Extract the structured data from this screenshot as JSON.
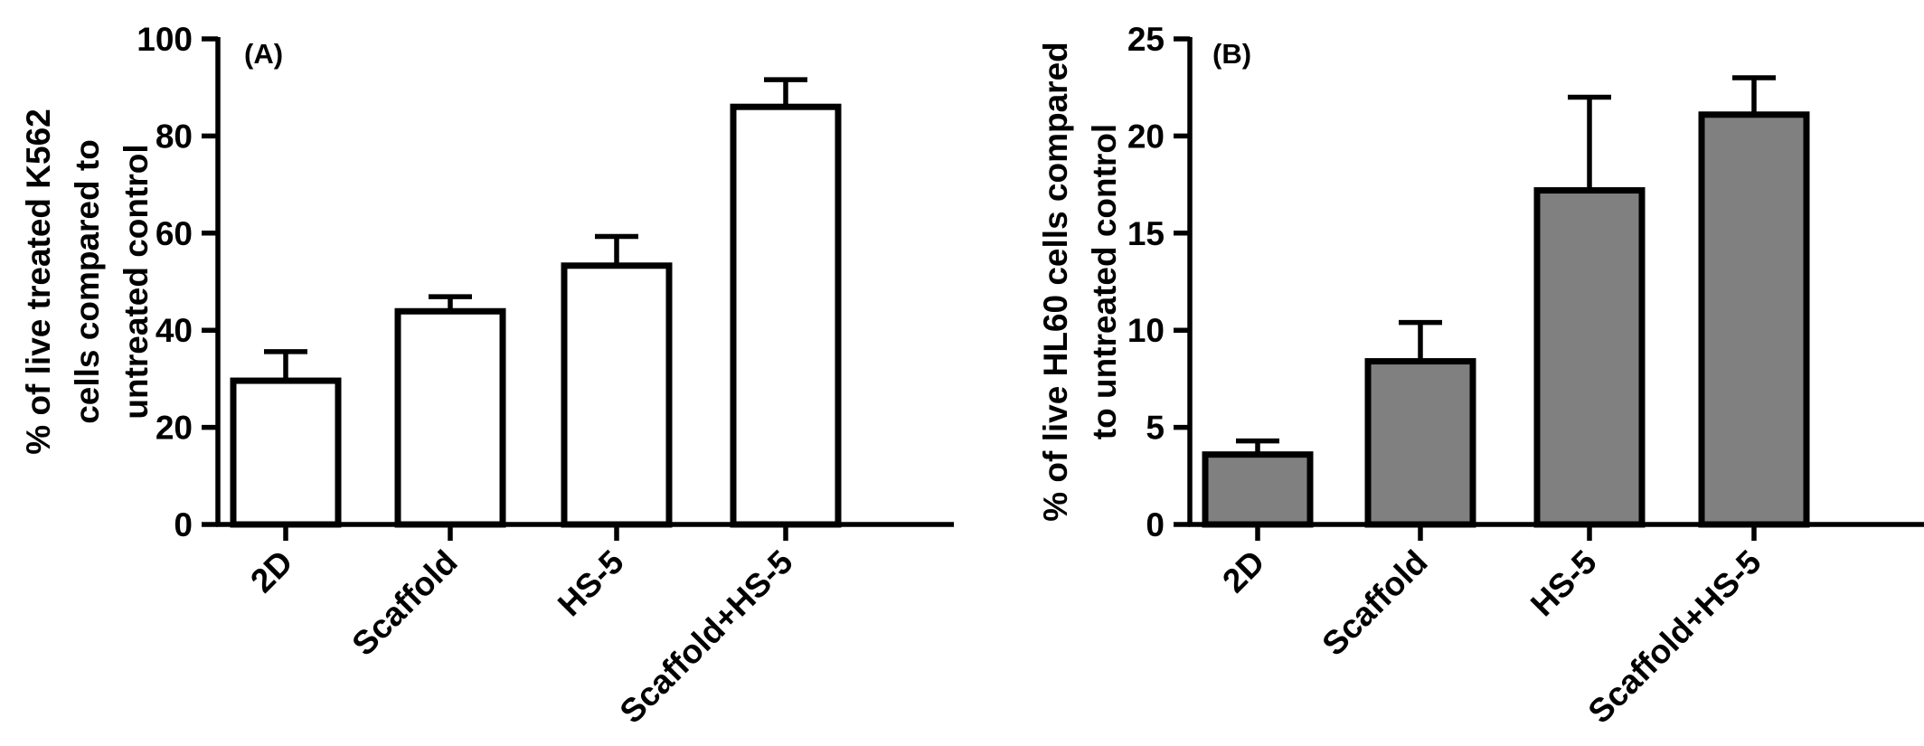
{
  "chart_data": [
    {
      "type": "bar",
      "panel_label": "(A)",
      "categories": [
        "2D",
        "Scaffold",
        "HS-5",
        "Scaffold+HS-5"
      ],
      "values": [
        29.6,
        43.9,
        53.3,
        86.0
      ],
      "errors": [
        6.0,
        3.0,
        6.0,
        5.6
      ],
      "ylabel": [
        "% of live treated K562",
        "cells compared to",
        "untreated control"
      ],
      "ylim": [
        0,
        100
      ],
      "yticks": [
        0,
        20,
        40,
        60,
        80,
        100
      ],
      "bar_color": "#ffffff",
      "edge_color": "#000000"
    },
    {
      "type": "bar",
      "panel_label": "(B)",
      "categories": [
        "2D",
        "Scaffold",
        "HS-5",
        "Scaffold+HS-5"
      ],
      "values": [
        3.6,
        8.4,
        17.2,
        21.1
      ],
      "errors": [
        0.7,
        2.0,
        4.8,
        1.9
      ],
      "ylabel": [
        "% of live HL60 cells compared",
        "to untreated control"
      ],
      "ylim": [
        0,
        25
      ],
      "yticks": [
        0,
        5,
        10,
        15,
        20,
        25
      ],
      "bar_color": "#808080",
      "edge_color": "#000000"
    }
  ]
}
